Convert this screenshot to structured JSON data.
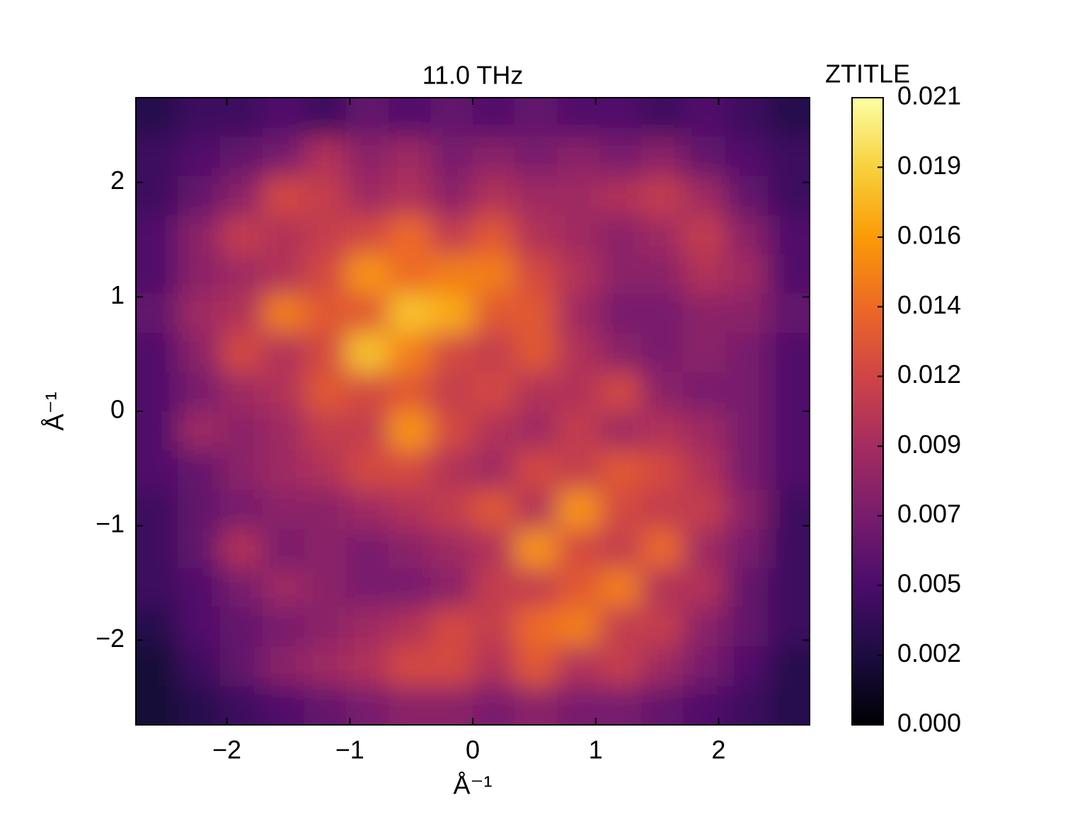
{
  "chart_data": {
    "type": "heatmap",
    "title": "11.0 THz",
    "colorbar_title": "ZTITLE",
    "xlabel": "Å⁻¹",
    "ylabel": "Å⁻¹",
    "x": [
      -2.57,
      -2.23,
      -1.88,
      -1.54,
      -1.2,
      -0.86,
      -0.51,
      -0.17,
      0.17,
      0.51,
      0.86,
      1.2,
      1.54,
      1.88,
      2.23,
      2.57
    ],
    "y": [
      2.57,
      2.23,
      1.88,
      1.54,
      1.2,
      0.86,
      0.51,
      0.17,
      -0.17,
      -0.51,
      -0.86,
      -1.2,
      -1.54,
      -1.88,
      -2.23,
      -2.57
    ],
    "z": [
      [
        0.003,
        0.004,
        0.004,
        0.005,
        0.004,
        0.006,
        0.005,
        0.006,
        0.005,
        0.006,
        0.005,
        0.005,
        0.004,
        0.005,
        0.004,
        0.003
      ],
      [
        0.004,
        0.005,
        0.006,
        0.007,
        0.01,
        0.008,
        0.009,
        0.007,
        0.008,
        0.007,
        0.008,
        0.007,
        0.008,
        0.006,
        0.005,
        0.004
      ],
      [
        0.004,
        0.006,
        0.008,
        0.012,
        0.011,
        0.009,
        0.01,
        0.008,
        0.01,
        0.009,
        0.009,
        0.01,
        0.011,
        0.009,
        0.006,
        0.004
      ],
      [
        0.005,
        0.008,
        0.011,
        0.01,
        0.011,
        0.012,
        0.014,
        0.011,
        0.013,
        0.01,
        0.009,
        0.008,
        0.009,
        0.011,
        0.008,
        0.005
      ],
      [
        0.005,
        0.008,
        0.009,
        0.01,
        0.012,
        0.016,
        0.014,
        0.015,
        0.015,
        0.012,
        0.01,
        0.008,
        0.008,
        0.01,
        0.009,
        0.005
      ],
      [
        0.006,
        0.009,
        0.01,
        0.015,
        0.013,
        0.013,
        0.018,
        0.017,
        0.013,
        0.013,
        0.009,
        0.007,
        0.007,
        0.008,
        0.008,
        0.006
      ],
      [
        0.005,
        0.008,
        0.012,
        0.01,
        0.012,
        0.018,
        0.015,
        0.012,
        0.011,
        0.013,
        0.01,
        0.008,
        0.007,
        0.008,
        0.007,
        0.005
      ],
      [
        0.005,
        0.007,
        0.009,
        0.01,
        0.013,
        0.012,
        0.013,
        0.011,
        0.012,
        0.01,
        0.01,
        0.012,
        0.008,
        0.007,
        0.007,
        0.005
      ],
      [
        0.005,
        0.009,
        0.008,
        0.009,
        0.011,
        0.011,
        0.016,
        0.012,
        0.01,
        0.009,
        0.011,
        0.009,
        0.01,
        0.009,
        0.007,
        0.005
      ],
      [
        0.005,
        0.006,
        0.008,
        0.009,
        0.01,
        0.012,
        0.012,
        0.01,
        0.009,
        0.012,
        0.011,
        0.013,
        0.012,
        0.01,
        0.007,
        0.005
      ],
      [
        0.004,
        0.006,
        0.007,
        0.008,
        0.008,
        0.009,
        0.01,
        0.011,
        0.013,
        0.01,
        0.016,
        0.012,
        0.011,
        0.011,
        0.008,
        0.004
      ],
      [
        0.004,
        0.006,
        0.01,
        0.007,
        0.008,
        0.007,
        0.008,
        0.009,
        0.01,
        0.016,
        0.012,
        0.011,
        0.014,
        0.009,
        0.007,
        0.004
      ],
      [
        0.004,
        0.005,
        0.007,
        0.009,
        0.008,
        0.007,
        0.007,
        0.008,
        0.011,
        0.011,
        0.013,
        0.015,
        0.01,
        0.01,
        0.006,
        0.004
      ],
      [
        0.003,
        0.005,
        0.006,
        0.007,
        0.008,
        0.009,
        0.01,
        0.012,
        0.011,
        0.014,
        0.015,
        0.011,
        0.011,
        0.008,
        0.006,
        0.004
      ],
      [
        0.002,
        0.004,
        0.006,
        0.008,
        0.009,
        0.01,
        0.012,
        0.012,
        0.01,
        0.013,
        0.01,
        0.011,
        0.009,
        0.007,
        0.005,
        0.003
      ],
      [
        0.002,
        0.003,
        0.004,
        0.005,
        0.006,
        0.007,
        0.008,
        0.008,
        0.007,
        0.008,
        0.007,
        0.007,
        0.006,
        0.005,
        0.004,
        0.003
      ]
    ],
    "xlim": [
      -2.74,
      2.74
    ],
    "ylim": [
      -2.74,
      2.74
    ],
    "xticks": [
      {
        "value": -2,
        "label": "−2"
      },
      {
        "value": -1,
        "label": "−1"
      },
      0,
      1,
      2
    ],
    "yticks": [
      {
        "value": -2,
        "label": "−2"
      },
      {
        "value": -1,
        "label": "−1"
      },
      0,
      1,
      2
    ],
    "zlim": [
      0,
      0.021
    ],
    "zticks": [
      {
        "value": 0,
        "label": "0.000"
      },
      {
        "value": 0.00233,
        "label": "0.002"
      },
      {
        "value": 0.00467,
        "label": "0.005"
      },
      {
        "value": 0.007,
        "label": "0.007"
      },
      {
        "value": 0.00933,
        "label": "0.009"
      },
      {
        "value": 0.01167,
        "label": "0.012"
      },
      {
        "value": 0.014,
        "label": "0.014"
      },
      {
        "value": 0.01633,
        "label": "0.016"
      },
      {
        "value": 0.01867,
        "label": "0.019"
      },
      {
        "value": 0.021,
        "label": "0.021"
      }
    ],
    "colorscale": [
      "#000004",
      "#1b0c41",
      "#4a0c6b",
      "#781c6d",
      "#a52c60",
      "#cf4446",
      "#ed6925",
      "#fb9b06",
      "#f7d13d",
      "#fcffa4"
    ]
  }
}
